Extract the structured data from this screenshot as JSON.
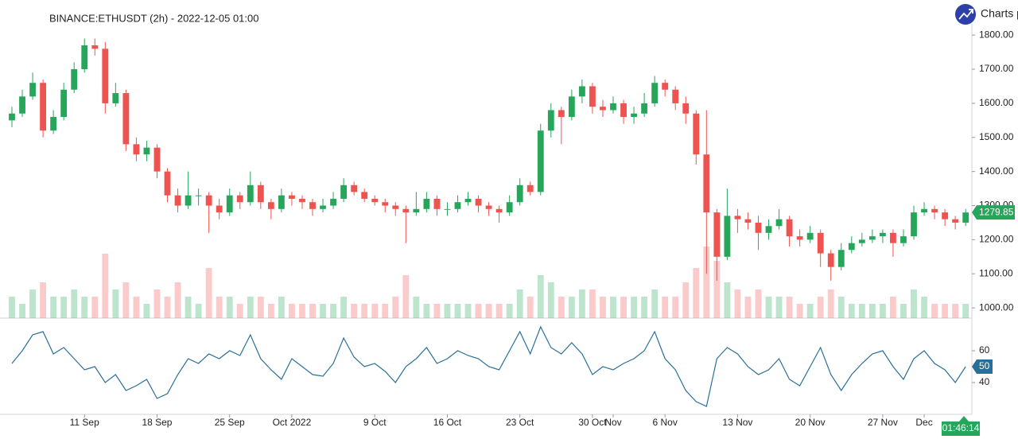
{
  "header": {
    "title": "BINANCE:ETHUSDT (2h) - 2022-12-05 01:00",
    "brand": "Charts p",
    "countdown": "01:46:14"
  },
  "chart_data": {
    "type": "candlestick",
    "up_color": "#26a65b",
    "down_color": "#ef5350",
    "xlim": [
      -1.15,
      92.6
    ],
    "xticks": [
      {
        "value": 7,
        "label": "11 Sep"
      },
      {
        "value": 14,
        "label": "18 Sep"
      },
      {
        "value": 21,
        "label": "25 Sep"
      },
      {
        "value": 27,
        "label": "Oct 2022"
      },
      {
        "value": 35,
        "label": "9 Oct"
      },
      {
        "value": 42,
        "label": "16 Oct"
      },
      {
        "value": 49,
        "label": "23 Oct"
      },
      {
        "value": 56,
        "label": "30 Oct"
      },
      {
        "value": 58,
        "label": "Nov"
      },
      {
        "value": 63,
        "label": "6 Nov"
      },
      {
        "value": 70,
        "label": "13 Nov"
      },
      {
        "value": 77,
        "label": "20 Nov"
      },
      {
        "value": 84,
        "label": "27 Nov"
      },
      {
        "value": 88,
        "label": "Dec"
      }
    ],
    "ylim": [
      970,
      1903
    ],
    "yticks": [
      {
        "value": 1000,
        "label": "1000.00"
      },
      {
        "value": 1100,
        "label": "1100.00"
      },
      {
        "value": 1200,
        "label": "1200.00"
      },
      {
        "value": 1300,
        "label": "1300.00"
      },
      {
        "value": 1400,
        "label": "1400.00"
      },
      {
        "value": 1500,
        "label": "1500.00"
      },
      {
        "value": 1600,
        "label": "1600.00"
      },
      {
        "value": 1700,
        "label": "1700.00"
      },
      {
        "value": 1800,
        "label": "1800.00"
      }
    ],
    "open": [
      1550,
      1570,
      1620,
      1660,
      1520,
      1560,
      1640,
      1700,
      1770,
      1760,
      1600,
      1630,
      1480,
      1450,
      1470,
      1400,
      1330,
      1300,
      1330,
      1330,
      1300,
      1280,
      1330,
      1310,
      1360,
      1310,
      1290,
      1330,
      1320,
      1310,
      1290,
      1300,
      1320,
      1360,
      1340,
      1320,
      1310,
      1300,
      1290,
      1280,
      1290,
      1320,
      1290,
      1290,
      1310,
      1320,
      1300,
      1290,
      1280,
      1310,
      1360,
      1340,
      1520,
      1580,
      1560,
      1620,
      1650,
      1590,
      1580,
      1600,
      1560,
      1570,
      1600,
      1660,
      1640,
      1600,
      1570,
      1450,
      1280,
      1150,
      1270,
      1260,
      1250,
      1220,
      1240,
      1260,
      1210,
      1200,
      1220,
      1160,
      1120,
      1170,
      1190,
      1200,
      1210,
      1220,
      1190,
      1210,
      1280,
      1290,
      1280,
      1260,
      1250
    ],
    "high": [
      1590,
      1640,
      1690,
      1670,
      1580,
      1660,
      1720,
      1790,
      1790,
      1780,
      1660,
      1640,
      1500,
      1490,
      1480,
      1410,
      1350,
      1400,
      1350,
      1340,
      1320,
      1350,
      1340,
      1400,
      1370,
      1320,
      1350,
      1340,
      1330,
      1320,
      1320,
      1340,
      1380,
      1370,
      1350,
      1330,
      1320,
      1310,
      1300,
      1340,
      1340,
      1330,
      1310,
      1330,
      1340,
      1330,
      1310,
      1300,
      1330,
      1380,
      1370,
      1540,
      1600,
      1590,
      1640,
      1670,
      1660,
      1610,
      1620,
      1610,
      1590,
      1630,
      1680,
      1670,
      1650,
      1620,
      1580,
      1580,
      1290,
      1350,
      1290,
      1280,
      1270,
      1260,
      1290,
      1270,
      1230,
      1240,
      1230,
      1170,
      1190,
      1210,
      1220,
      1230,
      1230,
      1230,
      1230,
      1300,
      1310,
      1300,
      1290,
      1270,
      1290
    ],
    "low": [
      1530,
      1560,
      1610,
      1500,
      1510,
      1550,
      1630,
      1690,
      1740,
      1570,
      1590,
      1460,
      1430,
      1430,
      1380,
      1310,
      1280,
      1290,
      1300,
      1220,
      1260,
      1270,
      1290,
      1300,
      1290,
      1260,
      1280,
      1300,
      1290,
      1270,
      1280,
      1290,
      1310,
      1330,
      1310,
      1300,
      1280,
      1270,
      1190,
      1270,
      1280,
      1270,
      1270,
      1280,
      1300,
      1280,
      1270,
      1250,
      1270,
      1300,
      1330,
      1330,
      1500,
      1480,
      1550,
      1600,
      1570,
      1560,
      1570,
      1540,
      1540,
      1560,
      1590,
      1620,
      1580,
      1540,
      1420,
      1100,
      1080,
      1140,
      1220,
      1230,
      1170,
      1200,
      1230,
      1180,
      1180,
      1190,
      1120,
      1080,
      1110,
      1160,
      1180,
      1190,
      1190,
      1150,
      1180,
      1200,
      1270,
      1260,
      1240,
      1230,
      1240
    ],
    "close": [
      1570,
      1620,
      1660,
      1520,
      1560,
      1640,
      1700,
      1770,
      1760,
      1600,
      1630,
      1480,
      1450,
      1470,
      1400,
      1330,
      1300,
      1330,
      1330,
      1300,
      1280,
      1330,
      1310,
      1360,
      1310,
      1290,
      1330,
      1320,
      1310,
      1290,
      1300,
      1320,
      1360,
      1340,
      1320,
      1310,
      1300,
      1290,
      1280,
      1290,
      1320,
      1290,
      1290,
      1310,
      1320,
      1300,
      1290,
      1280,
      1310,
      1360,
      1340,
      1520,
      1580,
      1560,
      1620,
      1650,
      1590,
      1580,
      1600,
      1560,
      1570,
      1600,
      1660,
      1640,
      1600,
      1570,
      1450,
      1280,
      1150,
      1270,
      1260,
      1250,
      1220,
      1240,
      1260,
      1210,
      1200,
      1220,
      1160,
      1120,
      1170,
      1190,
      1200,
      1210,
      1220,
      1190,
      1210,
      1280,
      1290,
      1280,
      1260,
      1250,
      1279.85
    ],
    "volume": [
      3,
      2,
      4,
      5,
      3,
      3,
      4,
      3,
      3,
      9,
      4,
      5,
      3,
      2,
      4,
      3,
      5,
      3,
      2,
      7,
      3,
      3,
      2,
      3,
      3,
      2,
      3,
      2,
      2,
      2,
      2,
      2,
      3,
      2,
      2,
      2,
      2,
      3,
      6,
      3,
      2,
      2,
      2,
      2,
      2,
      2,
      2,
      2,
      2,
      4,
      3,
      6,
      5,
      3,
      3,
      4,
      4,
      3,
      3,
      3,
      3,
      3,
      4,
      3,
      3,
      5,
      7,
      10,
      8,
      5,
      4,
      3,
      4,
      3,
      3,
      3,
      2,
      2,
      3,
      4,
      3,
      2,
      2,
      2,
      2,
      3,
      2,
      4,
      3,
      2,
      2,
      2,
      2
    ],
    "indicator": {
      "type": "line",
      "color": "#2a6f97",
      "ylim": [
        20,
        80
      ],
      "yticks": [
        40,
        60
      ],
      "values": [
        52,
        60,
        70,
        72,
        58,
        62,
        55,
        48,
        50,
        40,
        45,
        35,
        38,
        42,
        30,
        33,
        45,
        55,
        52,
        58,
        55,
        60,
        57,
        70,
        55,
        48,
        42,
        55,
        50,
        45,
        44,
        52,
        68,
        56,
        50,
        52,
        47,
        40,
        50,
        55,
        62,
        52,
        55,
        60,
        57,
        55,
        50,
        48,
        60,
        72,
        58,
        75,
        62,
        58,
        65,
        58,
        45,
        50,
        48,
        52,
        55,
        60,
        72,
        55,
        48,
        35,
        28,
        25,
        55,
        62,
        58,
        50,
        45,
        48,
        55,
        42,
        38,
        50,
        62,
        45,
        35,
        45,
        52,
        58,
        60,
        50,
        42,
        55,
        60,
        52,
        48,
        40,
        50
      ]
    }
  }
}
